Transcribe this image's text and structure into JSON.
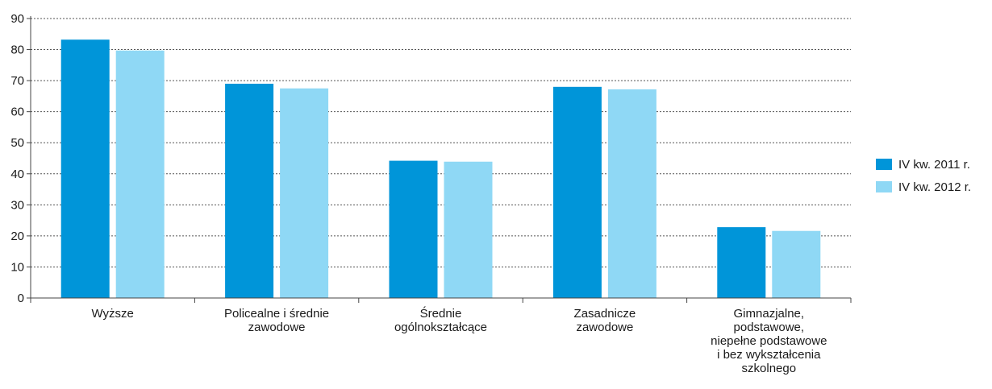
{
  "chart_data": {
    "type": "bar",
    "categories": [
      [
        "Wyższe"
      ],
      [
        "Policealne i średnie",
        "zawodowe"
      ],
      [
        "Średnie",
        "ogólnokształcące"
      ],
      [
        "Zasadnicze",
        "zawodowe"
      ],
      [
        "Gimnazjalne,",
        "podstawowe,",
        "niepełne podstawowe",
        "i bez wykształcenia",
        "szkolnego"
      ]
    ],
    "series": [
      {
        "name": "IV kw. 2011 r.",
        "color": "#0095d9",
        "values": [
          83.2,
          69.0,
          44.2,
          68.0,
          22.8
        ]
      },
      {
        "name": "IV kw. 2012 r.",
        "color": "#8fd8f5",
        "values": [
          79.7,
          67.5,
          43.9,
          67.2,
          21.6
        ]
      }
    ],
    "yticks": [
      0,
      10,
      20,
      30,
      40,
      50,
      60,
      70,
      80,
      90
    ],
    "ylim": [
      0,
      90
    ],
    "grid": true,
    "legend_position": "right"
  }
}
